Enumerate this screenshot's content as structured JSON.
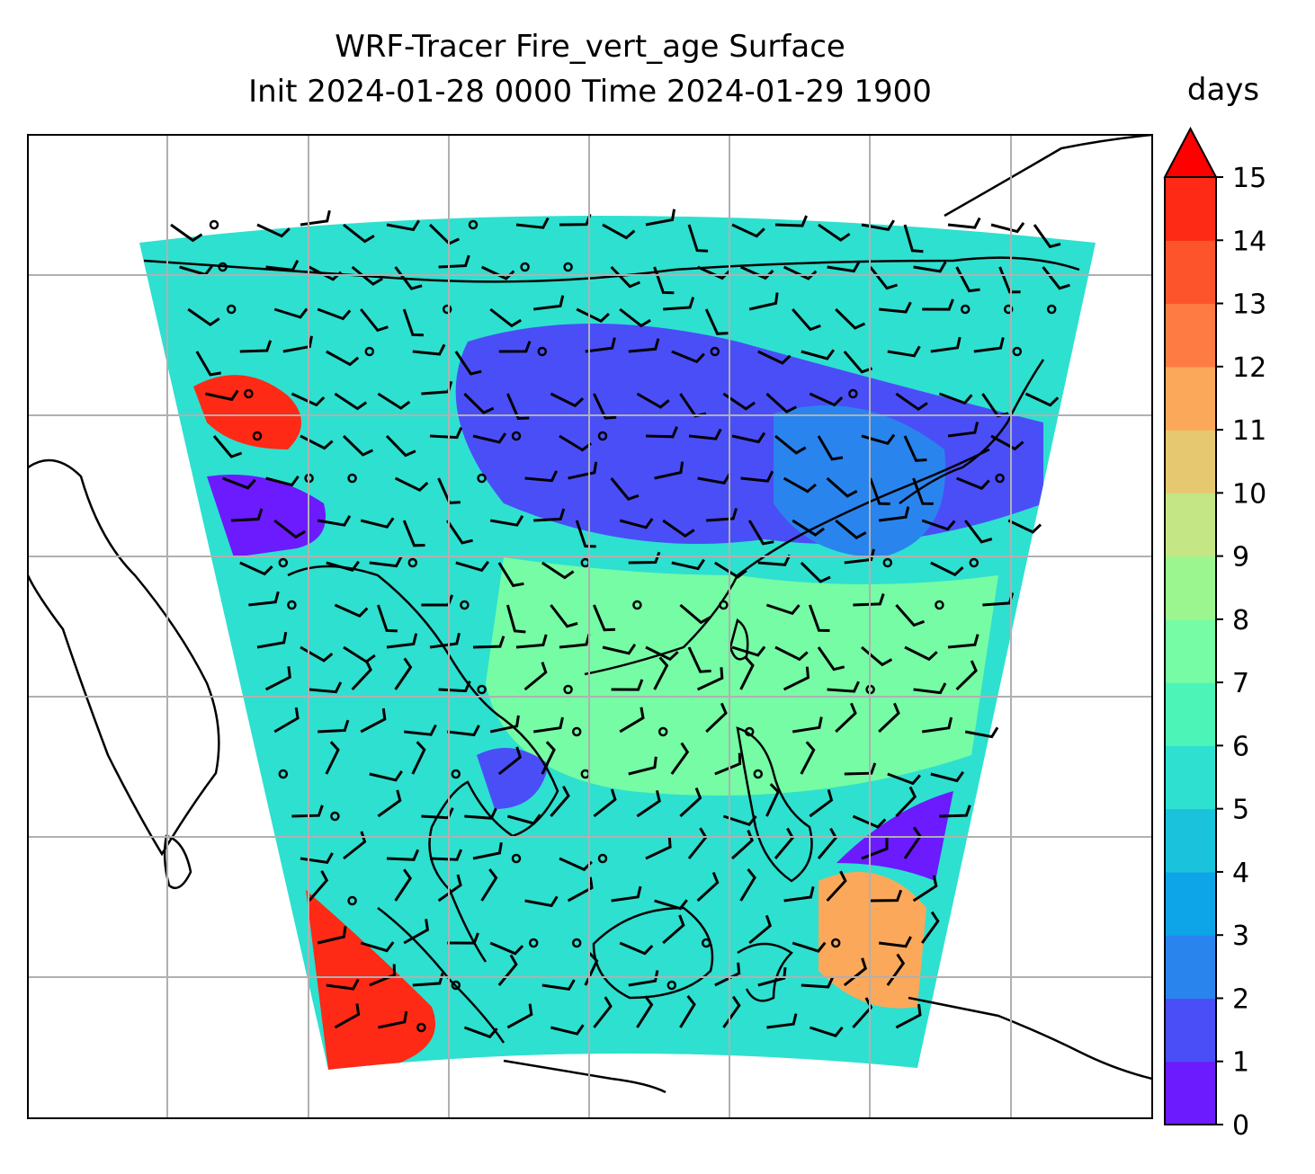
{
  "title": {
    "line1": "WRF-Tracer Fire_vert_age Surface",
    "line2": "Init 2024-01-28 0000 Time 2024-01-29 1900"
  },
  "colorbar": {
    "unit_label": "days",
    "levels": [
      0,
      1,
      2,
      3,
      4,
      5,
      6,
      7,
      8,
      9,
      10,
      11,
      12,
      13,
      14,
      15
    ],
    "tick_labels": [
      "0",
      "1",
      "2",
      "3",
      "4",
      "5",
      "6",
      "7",
      "8",
      "9",
      "10",
      "11",
      "12",
      "13",
      "14",
      "15"
    ],
    "colors": [
      "#6c1afe",
      "#4a4ef7",
      "#2a84ee",
      "#0ea4e8",
      "#1ac2dc",
      "#2ee0d0",
      "#4cf4b8",
      "#76fca4",
      "#9cf690",
      "#c4e684",
      "#e6c870",
      "#fca85a",
      "#fe7c44",
      "#fe542c",
      "#fe2a16"
    ],
    "extend": "max",
    "extend_color": "#ff0000"
  },
  "map": {
    "ocean_fill": "#2ee0d0",
    "grid_color": "#b0b0b0",
    "coastline_color": "#000000",
    "barb_color": "#000000"
  }
}
